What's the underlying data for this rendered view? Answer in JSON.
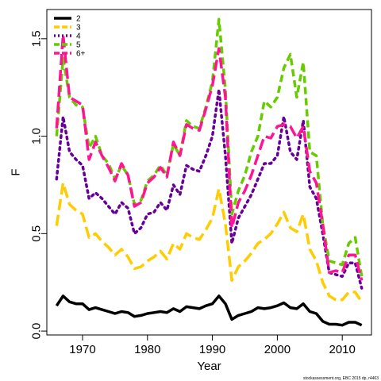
{
  "chart_data": {
    "type": "line",
    "xlabel": "Year",
    "ylabel": "F",
    "xlim": [
      1964.5,
      2014.5
    ],
    "ylim": [
      -0.02,
      1.65
    ],
    "x_ticks": [
      1970,
      1980,
      1990,
      2000,
      2010
    ],
    "y_ticks": [
      0.0,
      0.5,
      1.0,
      1.5
    ],
    "y_tick_labels": [
      "0.0",
      "0.5",
      "1.0",
      "1.5"
    ],
    "x": [
      1966,
      1967,
      1968,
      1969,
      1970,
      1971,
      1972,
      1973,
      1974,
      1975,
      1976,
      1977,
      1978,
      1979,
      1980,
      1981,
      1982,
      1983,
      1984,
      1985,
      1986,
      1987,
      1988,
      1989,
      1990,
      1991,
      1992,
      1993,
      1994,
      1995,
      1996,
      1997,
      1998,
      1999,
      2000,
      2001,
      2002,
      2003,
      2004,
      2005,
      2006,
      2007,
      2008,
      2009,
      2010,
      2011,
      2012,
      2013
    ],
    "legend_position": "top-left",
    "grid": false,
    "series": [
      {
        "name": "2",
        "color": "#000000",
        "dash": "solid",
        "values": [
          0.13,
          0.18,
          0.15,
          0.14,
          0.14,
          0.11,
          0.12,
          0.11,
          0.1,
          0.09,
          0.1,
          0.095,
          0.075,
          0.08,
          0.09,
          0.095,
          0.1,
          0.095,
          0.115,
          0.1,
          0.125,
          0.12,
          0.115,
          0.13,
          0.14,
          0.18,
          0.14,
          0.06,
          0.08,
          0.09,
          0.1,
          0.12,
          0.115,
          0.12,
          0.13,
          0.145,
          0.12,
          0.115,
          0.14,
          0.1,
          0.09,
          0.05,
          0.035,
          0.035,
          0.03,
          0.045,
          0.045,
          0.03
        ]
      },
      {
        "name": "3",
        "color": "#ffcc00",
        "dash": "longdash",
        "values": [
          0.54,
          0.76,
          0.65,
          0.62,
          0.6,
          0.48,
          0.5,
          0.46,
          0.43,
          0.39,
          0.42,
          0.38,
          0.32,
          0.33,
          0.36,
          0.38,
          0.41,
          0.37,
          0.45,
          0.42,
          0.5,
          0.48,
          0.47,
          0.52,
          0.58,
          0.73,
          0.55,
          0.26,
          0.33,
          0.36,
          0.4,
          0.45,
          0.47,
          0.5,
          0.55,
          0.61,
          0.53,
          0.51,
          0.6,
          0.42,
          0.36,
          0.25,
          0.18,
          0.16,
          0.16,
          0.2,
          0.2,
          0.15
        ]
      },
      {
        "name": "4",
        "color": "#660099",
        "dash": "dotted",
        "values": [
          0.78,
          1.1,
          0.92,
          0.88,
          0.85,
          0.68,
          0.71,
          0.68,
          0.64,
          0.6,
          0.66,
          0.63,
          0.5,
          0.53,
          0.6,
          0.61,
          0.66,
          0.62,
          0.75,
          0.7,
          0.85,
          0.83,
          0.82,
          0.9,
          1.0,
          1.24,
          0.9,
          0.45,
          0.58,
          0.64,
          0.7,
          0.78,
          0.86,
          0.86,
          0.9,
          1.1,
          0.92,
          0.88,
          1.08,
          0.74,
          0.68,
          0.5,
          0.3,
          0.29,
          0.28,
          0.35,
          0.35,
          0.22
        ]
      },
      {
        "name": "5",
        "color": "#66cc00",
        "dash": "dashed",
        "values": [
          1.0,
          1.4,
          1.2,
          1.16,
          1.15,
          0.94,
          1.0,
          0.9,
          0.86,
          0.78,
          0.85,
          0.8,
          0.65,
          0.67,
          0.77,
          0.8,
          0.85,
          0.8,
          0.96,
          0.9,
          1.08,
          1.05,
          1.04,
          1.15,
          1.28,
          1.6,
          1.24,
          0.6,
          0.72,
          0.8,
          0.92,
          1.0,
          1.18,
          1.15,
          1.2,
          1.35,
          1.42,
          1.2,
          1.38,
          0.92,
          0.9,
          0.55,
          0.36,
          0.35,
          0.34,
          0.45,
          0.48,
          0.28
        ]
      },
      {
        "name": "6+",
        "color": "#ff1493",
        "dash": "longdash",
        "values": [
          1.04,
          1.52,
          1.2,
          1.18,
          1.16,
          0.88,
          0.97,
          0.9,
          0.84,
          0.77,
          0.86,
          0.8,
          0.64,
          0.66,
          0.76,
          0.79,
          0.84,
          0.79,
          0.97,
          0.9,
          1.06,
          1.04,
          1.03,
          1.14,
          1.26,
          1.45,
          1.2,
          0.53,
          0.66,
          0.72,
          0.8,
          0.9,
          1.0,
          0.99,
          1.05,
          1.06,
          1.05,
          0.99,
          1.05,
          0.82,
          0.76,
          0.55,
          0.3,
          0.31,
          0.3,
          0.39,
          0.39,
          0.26
        ]
      }
    ],
    "credit": "stockassessment.org, EBC 2015 dp, r4463"
  }
}
